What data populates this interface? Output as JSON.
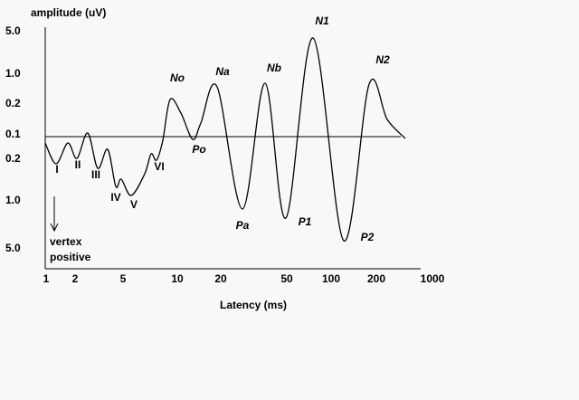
{
  "y_axis_title": "amplitude (uV)",
  "y_tick_labels": [
    "5.0",
    "1.0",
    "0.2",
    "0.1",
    "0.2",
    "1.0",
    "5.0"
  ],
  "x_tick_labels": [
    "1",
    "2",
    "5",
    "10",
    "20",
    "50",
    "100",
    "200",
    "1000"
  ],
  "x_axis_title": "Latency (ms)",
  "early_peaks": [
    "I",
    "II",
    "III",
    "IV",
    "V",
    "VI"
  ],
  "late_peaks": [
    "No",
    "Po",
    "Na",
    "Pa",
    "Nb",
    "P1",
    "N1",
    "P2",
    "N2"
  ],
  "arrow_label": [
    "vertex",
    "positive"
  ]
}
